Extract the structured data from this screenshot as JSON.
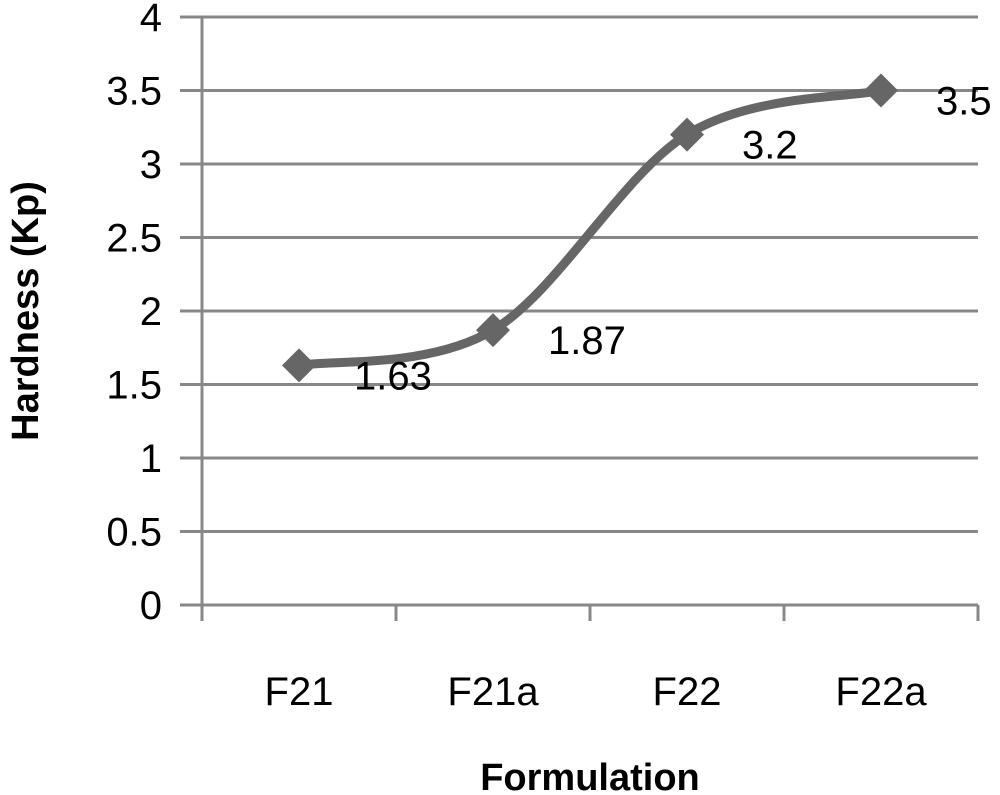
{
  "chart_data": {
    "type": "line",
    "categories": [
      "F21",
      "F21a",
      "F22",
      "F22a"
    ],
    "series": [
      {
        "values": [
          1.63,
          1.87,
          3.2,
          3.5
        ],
        "data_labels": [
          "1.63",
          "1.87",
          "3.2",
          "3.5"
        ],
        "marker": "diamond",
        "smooth": true
      }
    ],
    "xlabel": "Formulation",
    "ylabel": "Hardness (Kp)",
    "ylim": [
      0,
      4
    ],
    "yticks": [
      "0",
      "0.5",
      "1",
      "1.5",
      "2",
      "2.5",
      "3",
      "3.5",
      "4"
    ],
    "grid": true,
    "legend": "none"
  },
  "colors": {
    "series": "#666666",
    "grid": "#888888",
    "axis": "#888888",
    "text": "#000000"
  }
}
